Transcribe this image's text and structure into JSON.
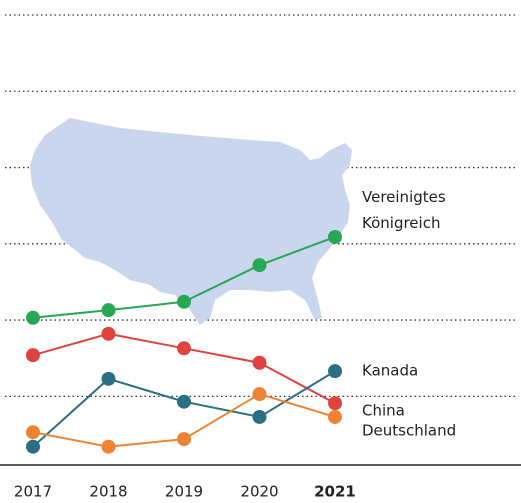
{
  "chart_data": {
    "type": "line",
    "categories": [
      "2017",
      "2018",
      "2019",
      "2020",
      "2021"
    ],
    "series": [
      {
        "name": "Vereinigtes Königreich",
        "color": "#27a855",
        "values": [
          2.03,
          2.13,
          2.24,
          2.72,
          3.09
        ]
      },
      {
        "name": "China",
        "color": "#e0433f",
        "values": [
          1.54,
          1.82,
          1.63,
          1.44,
          0.91
        ]
      },
      {
        "name": "Kanada",
        "color": "#2b6e84",
        "values": [
          0.34,
          1.23,
          0.93,
          0.73,
          1.33
        ]
      },
      {
        "name": "Deutschland",
        "color": "#ee8433",
        "values": [
          0.53,
          0.34,
          0.44,
          1.03,
          0.73
        ]
      }
    ],
    "ylim": [
      0.1,
      6
    ],
    "yticks": [
      1,
      2,
      3,
      4,
      5,
      6
    ],
    "grid": true
  }
}
